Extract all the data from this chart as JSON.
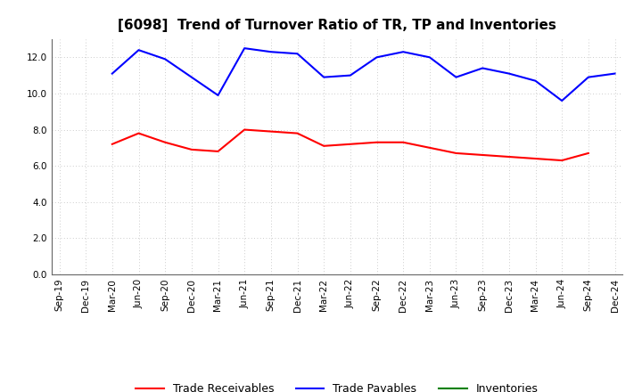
{
  "title": "[6098]  Trend of Turnover Ratio of TR, TP and Inventories",
  "x_labels": [
    "Sep-19",
    "Dec-19",
    "Mar-20",
    "Jun-20",
    "Sep-20",
    "Dec-20",
    "Mar-21",
    "Jun-21",
    "Sep-21",
    "Dec-21",
    "Mar-22",
    "Jun-22",
    "Sep-22",
    "Dec-22",
    "Mar-23",
    "Jun-23",
    "Sep-23",
    "Dec-23",
    "Mar-24",
    "Jun-24",
    "Sep-24",
    "Dec-24"
  ],
  "trade_receivables": [
    null,
    null,
    7.2,
    7.8,
    7.3,
    6.9,
    6.8,
    8.0,
    7.9,
    7.8,
    7.1,
    7.2,
    7.3,
    7.3,
    7.0,
    6.7,
    6.6,
    6.5,
    6.4,
    6.3,
    6.7,
    null
  ],
  "trade_payables": [
    null,
    null,
    11.1,
    12.4,
    11.9,
    10.9,
    9.9,
    12.5,
    12.3,
    12.2,
    10.9,
    11.0,
    12.0,
    12.3,
    12.0,
    10.9,
    11.4,
    11.1,
    10.7,
    9.6,
    10.9,
    11.1
  ],
  "inventories": [
    null,
    null,
    null,
    null,
    null,
    null,
    null,
    null,
    null,
    null,
    null,
    null,
    null,
    null,
    null,
    null,
    null,
    null,
    null,
    null,
    null,
    null
  ],
  "tr_color": "#ff0000",
  "tp_color": "#0000ff",
  "inv_color": "#008000",
  "ylim": [
    0.0,
    13.0
  ],
  "yticks": [
    0.0,
    2.0,
    4.0,
    6.0,
    8.0,
    10.0,
    12.0
  ],
  "background_color": "#ffffff",
  "grid_color": "#bbbbbb",
  "title_fontsize": 11,
  "legend_fontsize": 9,
  "axis_fontsize": 7.5
}
